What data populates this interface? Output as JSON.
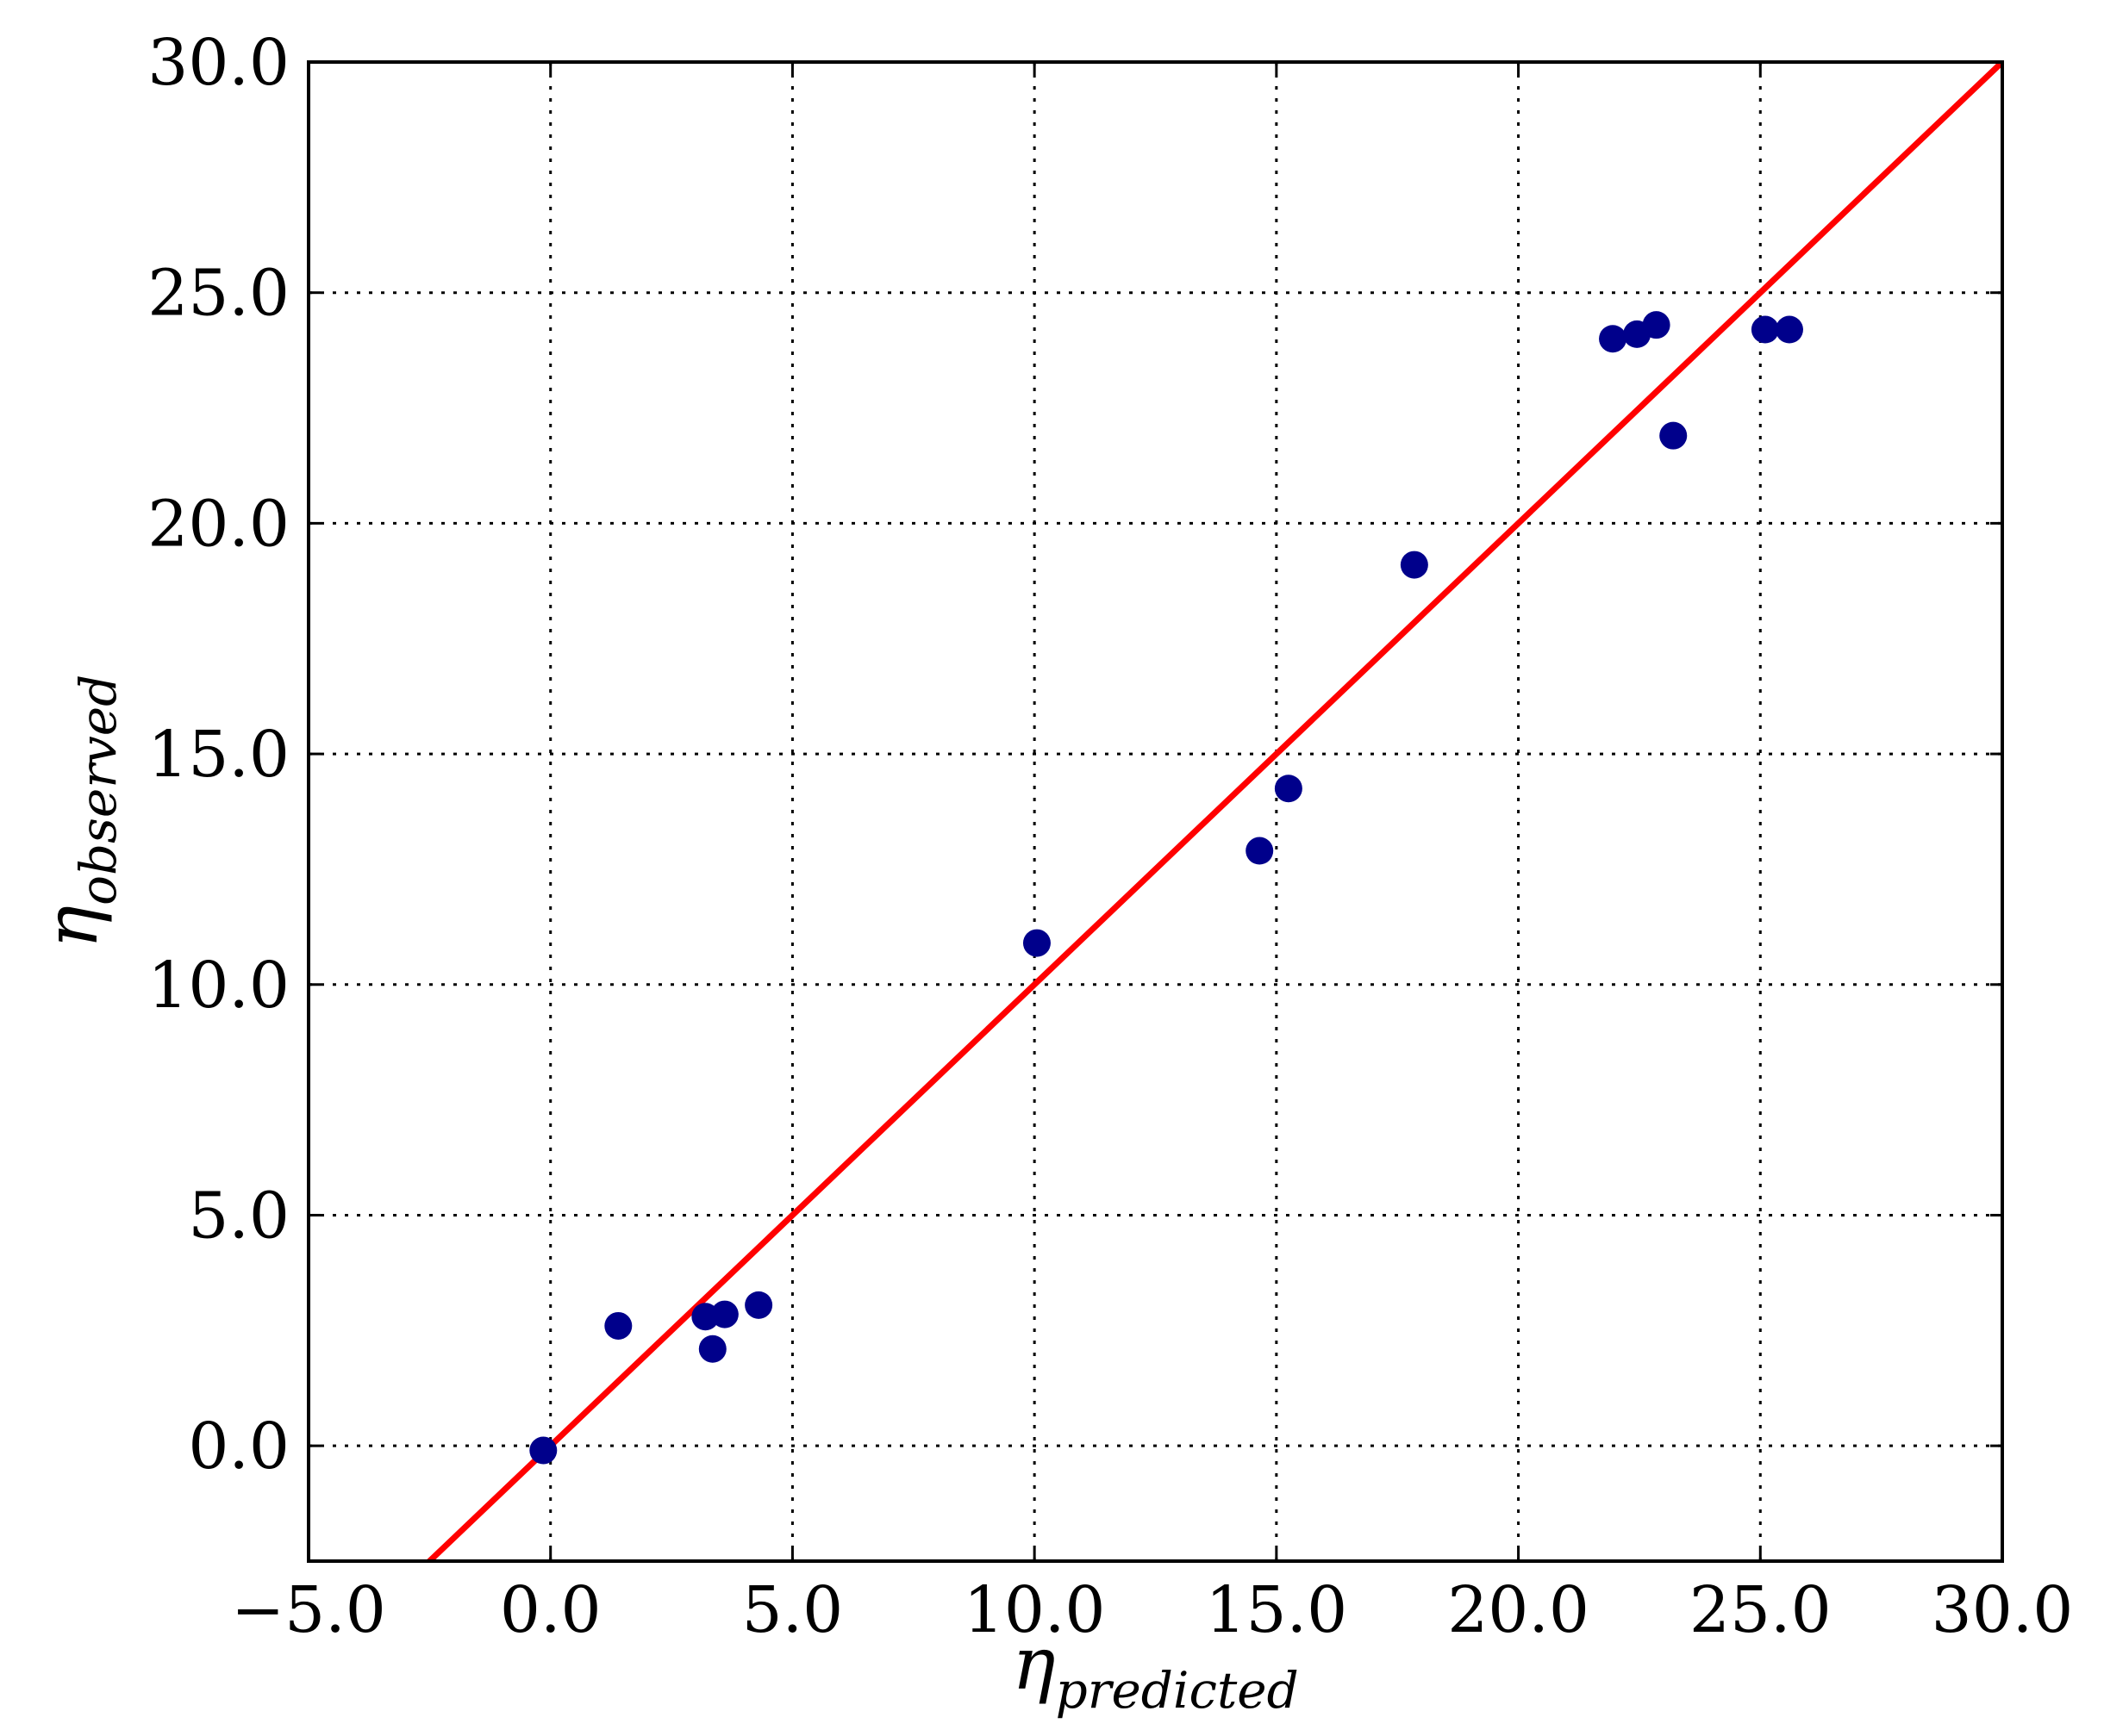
{
  "chart_data": {
    "type": "scatter",
    "xlabel_symbol": "η",
    "xlabel_subscript": "predicted",
    "ylabel_symbol": "η",
    "ylabel_subscript": "observed",
    "xlim": [
      -5.0,
      30.0
    ],
    "ylim": [
      -2.5,
      30.0
    ],
    "x_ticks": [
      -5.0,
      0.0,
      5.0,
      10.0,
      15.0,
      20.0,
      25.0,
      30.0
    ],
    "x_tick_labels": [
      "−5.0",
      "0.0",
      "5.0",
      "10.0",
      "15.0",
      "20.0",
      "25.0",
      "30.0"
    ],
    "y_ticks": [
      0.0,
      5.0,
      10.0,
      15.0,
      20.0,
      25.0,
      30.0
    ],
    "y_tick_labels": [
      "0.0",
      "5.0",
      "10.0",
      "15.0",
      "20.0",
      "25.0",
      "30.0"
    ],
    "grid": true,
    "series": [
      {
        "kind": "scatter",
        "color": "#00008b",
        "points": [
          {
            "x": -0.15,
            "y": -0.1
          },
          {
            "x": 1.4,
            "y": 2.6
          },
          {
            "x": 3.2,
            "y": 2.8
          },
          {
            "x": 3.35,
            "y": 2.1
          },
          {
            "x": 3.6,
            "y": 2.85
          },
          {
            "x": 4.3,
            "y": 3.05
          },
          {
            "x": 10.05,
            "y": 10.9
          },
          {
            "x": 14.65,
            "y": 12.9
          },
          {
            "x": 15.25,
            "y": 14.25
          },
          {
            "x": 17.85,
            "y": 19.1
          },
          {
            "x": 21.95,
            "y": 24.0
          },
          {
            "x": 22.45,
            "y": 24.1
          },
          {
            "x": 22.85,
            "y": 24.3
          },
          {
            "x": 23.2,
            "y": 21.9
          },
          {
            "x": 25.1,
            "y": 24.2
          },
          {
            "x": 25.6,
            "y": 24.2
          }
        ]
      },
      {
        "kind": "line",
        "color": "#ff0000",
        "points": [
          {
            "x": -5.0,
            "y": -5.0
          },
          {
            "x": 30.0,
            "y": 30.0
          }
        ]
      }
    ]
  }
}
